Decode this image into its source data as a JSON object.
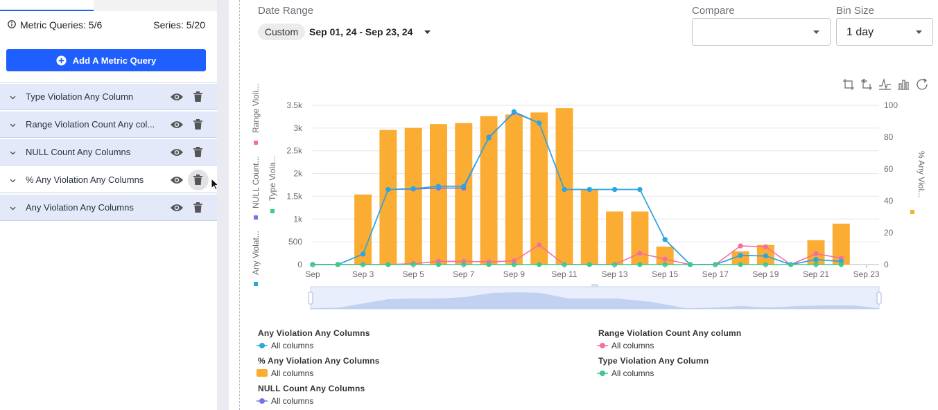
{
  "sidebar": {
    "metric_queries": "Metric Queries: 5/6",
    "series": "Series: 5/20",
    "add_button": "Add A Metric Query",
    "queries": [
      {
        "label": "Type Violation Any Column"
      },
      {
        "label": "Range Violation Count Any col..."
      },
      {
        "label": "NULL Count Any Columns"
      },
      {
        "label": "% Any Violation Any Columns"
      },
      {
        "label": "Any Violation Any Columns"
      }
    ]
  },
  "header": {
    "date_range_label": "Date Range",
    "date_chip": "Custom",
    "date_value": "Sep 01, 24 - Sep 23, 24",
    "compare_label": "Compare",
    "compare_value": "",
    "bin_size_label": "Bin Size",
    "bin_size_value": "1 day"
  },
  "colors": {
    "any_violation": "#29a8e0",
    "pct_any_violation": "#fbad33",
    "null_count": "#7573ea",
    "range_violation": "#f46ea0",
    "type_violation": "#3cc98a",
    "primary_button": "#1f5eff"
  },
  "toolbox": [
    "zoom-icon",
    "zoom-reset-icon",
    "line-chart-icon",
    "bar-chart-icon",
    "restore-icon"
  ],
  "chart_data": {
    "type": "bar",
    "x_ticks": [
      "Sep",
      "Sep 3",
      "Sep 5",
      "Sep 7",
      "Sep 9",
      "Sep 11",
      "Sep 13",
      "Sep 15",
      "Sep 17",
      "Sep 19",
      "Sep 21",
      "Sep 23"
    ],
    "x": [
      "Sep 1",
      "Sep 2",
      "Sep 3",
      "Sep 4",
      "Sep 5",
      "Sep 6",
      "Sep 7",
      "Sep 8",
      "Sep 9",
      "Sep 10",
      "Sep 11",
      "Sep 12",
      "Sep 13",
      "Sep 14",
      "Sep 15",
      "Sep 16",
      "Sep 17",
      "Sep 18",
      "Sep 19",
      "Sep 20",
      "Sep 21",
      "Sep 22"
    ],
    "y_left_ticks": [
      "0",
      "500",
      "1k",
      "1.5k",
      "2k",
      "2.5k",
      "3k",
      "3.5k"
    ],
    "y_left_range": [
      0,
      3500
    ],
    "y_right_ticks": [
      "0",
      "20",
      "40",
      "60",
      "80",
      "100"
    ],
    "y_right_range": [
      0,
      100
    ],
    "left_axis_names": [
      "Any Violat...",
      "NULL Count...",
      "Range Violi..."
    ],
    "middle_axis_name": "Type Viola...",
    "right_axis_name": "% Any Viol...",
    "grid": true,
    "series": [
      {
        "name": "% Any Violation Any Columns",
        "axis": "right",
        "kind": "bar",
        "values": [
          0,
          0,
          44,
          84.5,
          85.8,
          88.2,
          88.8,
          93.2,
          94.2,
          95.5,
          98.2,
          46.8,
          33.3,
          33.3,
          11.3,
          0,
          0,
          8.3,
          12.3,
          0,
          15.3,
          25.7
        ]
      },
      {
        "name": "Any Violation Any Columns",
        "axis": "left",
        "kind": "line",
        "values": [
          0,
          0,
          230,
          1650,
          1670,
          1720,
          1720,
          2780,
          3360,
          3110,
          1650,
          1650,
          1650,
          1650,
          550,
          0,
          0,
          200,
          190,
          0,
          110,
          70
        ]
      },
      {
        "name": "NULL Count Any Columns",
        "axis": "left",
        "kind": "line",
        "values": [
          0,
          0,
          230,
          1650,
          1660,
          1680,
          1680,
          2800,
          3340,
          3110,
          1650,
          1650,
          1650,
          1650,
          550,
          0,
          0,
          200,
          190,
          0,
          110,
          70
        ]
      },
      {
        "name": "Range Violation Count Any column",
        "axis": "left",
        "kind": "line",
        "values": [
          0,
          0,
          0,
          0,
          20,
          70,
          70,
          60,
          80,
          430,
          0,
          0,
          0,
          250,
          120,
          0,
          0,
          410,
          390,
          0,
          240,
          140
        ]
      },
      {
        "name": "Type Violation Any Column",
        "axis": "left",
        "kind": "line",
        "values": [
          0,
          0,
          0,
          0,
          0,
          0,
          0,
          0,
          0,
          0,
          0,
          0,
          0,
          0,
          0,
          0,
          0,
          0,
          0,
          0,
          0,
          0
        ]
      }
    ]
  },
  "legend": [
    {
      "title": "Any Violation Any Columns",
      "item": "All columns"
    },
    {
      "title": "% Any Violation Any Columns",
      "item": "All columns"
    },
    {
      "title": "NULL Count Any Columns",
      "item": "All columns"
    },
    {
      "title": "Range Violation Count Any column",
      "item": "All columns"
    },
    {
      "title": "Type Violation Any Column",
      "item": "All columns"
    }
  ]
}
